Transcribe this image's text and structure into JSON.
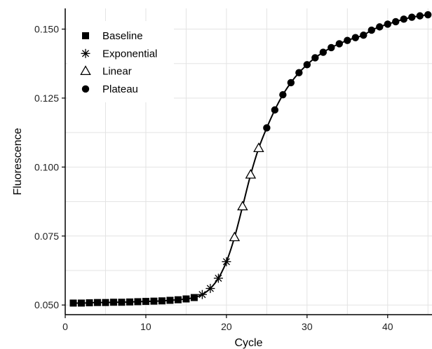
{
  "chart_data": {
    "type": "scatter",
    "title": "",
    "xlabel": "Cycle",
    "ylabel": "Fluorescence",
    "xlim": [
      0,
      45.5
    ],
    "ylim": [
      0.0465,
      0.1575
    ],
    "x_ticks": [
      0,
      10,
      20,
      30,
      40
    ],
    "y_ticks": [
      0.05,
      0.075,
      0.1,
      0.125,
      0.15
    ],
    "y_tick_labels": [
      "0.050",
      "0.075",
      "0.100",
      "0.125",
      "0.150"
    ],
    "grid": true,
    "legend_position": "top-left",
    "fit_line": true,
    "series": [
      {
        "name": "Baseline",
        "marker": "square",
        "x": [
          1,
          2,
          3,
          4,
          5,
          6,
          7,
          8,
          9,
          10,
          11,
          12,
          13,
          14,
          15,
          16
        ],
        "y": [
          0.0507,
          0.0507,
          0.0508,
          0.0509,
          0.0509,
          0.051,
          0.051,
          0.0511,
          0.0512,
          0.0513,
          0.0514,
          0.0515,
          0.0517,
          0.0519,
          0.0522,
          0.0527
        ]
      },
      {
        "name": "Exponential",
        "marker": "asterisk",
        "x": [
          17,
          18,
          19,
          20
        ],
        "y": [
          0.0538,
          0.056,
          0.0597,
          0.0657
        ]
      },
      {
        "name": "Linear",
        "marker": "triangle",
        "x": [
          21,
          22,
          23,
          24
        ],
        "y": [
          0.0745,
          0.0857,
          0.0972,
          0.1068
        ]
      },
      {
        "name": "Plateau",
        "marker": "circle",
        "x": [
          25,
          26,
          27,
          28,
          29,
          30,
          31,
          32,
          33,
          34,
          35,
          36,
          37,
          38,
          39,
          40,
          41,
          42,
          43,
          44,
          45
        ],
        "y": [
          0.1142,
          0.1207,
          0.1262,
          0.1306,
          0.1342,
          0.1371,
          0.1396,
          0.1416,
          0.1433,
          0.1447,
          0.1459,
          0.1469,
          0.1478,
          0.1496,
          0.1508,
          0.1518,
          0.1527,
          0.1536,
          0.1543,
          0.1548,
          0.1552
        ]
      }
    ]
  }
}
